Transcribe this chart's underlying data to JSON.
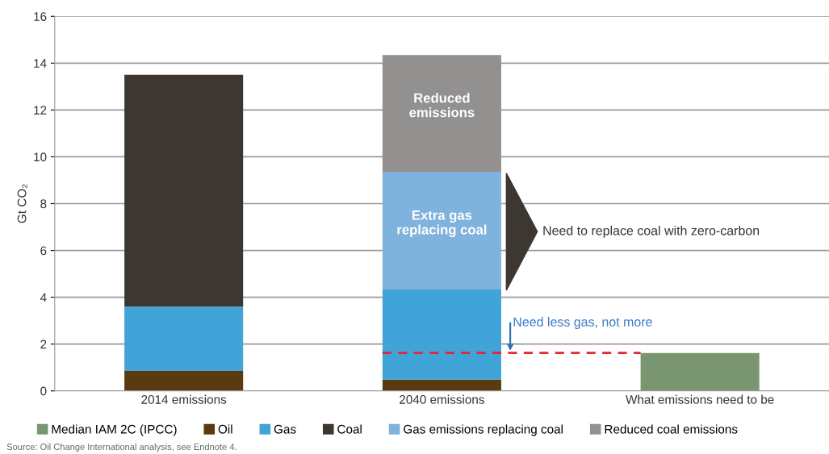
{
  "chart_data": {
    "type": "bar",
    "stacked": true,
    "ylabel": "Gt CO₂",
    "categories": [
      "2014 emissions",
      "2040 emissions",
      "What emissions need to be"
    ],
    "series": [
      {
        "name": "Median IAM 2C (IPCC)",
        "color": "#7a9670",
        "values": [
          null,
          null,
          1.62
        ]
      },
      {
        "name": "Oil",
        "color": "#5a3a0f",
        "values": [
          0.85,
          0.48,
          null
        ]
      },
      {
        "name": "Gas",
        "color": "#41a4d8",
        "values": [
          2.75,
          3.85,
          null
        ]
      },
      {
        "name": "Coal",
        "color": "#3d3732",
        "values": [
          9.9,
          null,
          null
        ]
      },
      {
        "name": "Gas emissions replacing coal",
        "color": "#7fb2dc",
        "values": [
          null,
          5.03,
          null
        ]
      },
      {
        "name": "Reduced coal emissions",
        "color": "#929190",
        "values": [
          null,
          4.99,
          null
        ]
      }
    ],
    "ylim": [
      0,
      16
    ],
    "yticks": [
      0,
      2,
      4,
      6,
      8,
      10,
      12,
      14,
      16
    ],
    "grid": "y",
    "legend": "bottom",
    "ref_lines": [
      {
        "axis": "y",
        "value": 1.62,
        "color": "#e8262b",
        "line_style": "dashed"
      }
    ],
    "annotations": [
      "Reduced\nemissions",
      "Extra gas\nreplacing coal",
      "Need to replace coal with zero-carbon",
      "Need less gas, not more",
      "Source: Oil Change International analysis, see Endnote 4."
    ]
  }
}
